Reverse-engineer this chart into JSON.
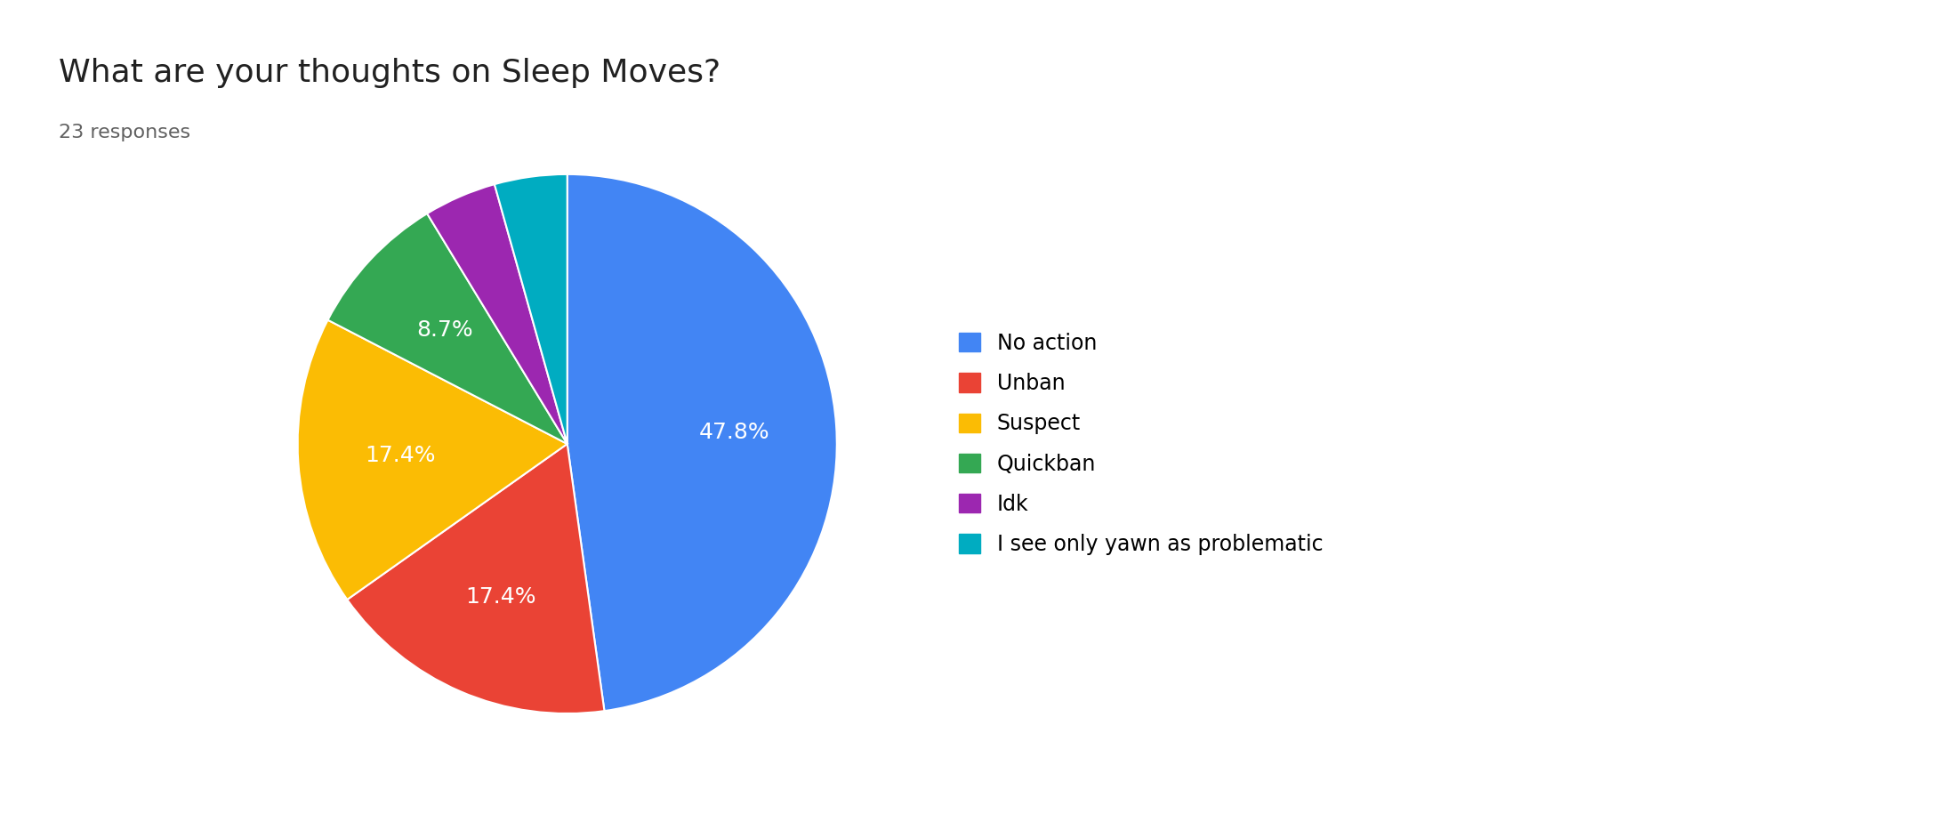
{
  "title": "What are your thoughts on Sleep Moves?",
  "subtitle": "23 responses",
  "labels": [
    "No action",
    "Unban",
    "Suspect",
    "Quickban",
    "Idk",
    "I see only yawn as problematic"
  ],
  "values": [
    47.8,
    17.4,
    17.4,
    8.7,
    4.35,
    4.35
  ],
  "colors": [
    "#4285F4",
    "#EA4335",
    "#FBBC04",
    "#34A853",
    "#9C27B0",
    "#00ACC1"
  ],
  "background_color": "#ffffff",
  "title_fontsize": 26,
  "subtitle_fontsize": 16,
  "legend_fontsize": 17,
  "pct_fontsize": 18,
  "startangle": 90
}
